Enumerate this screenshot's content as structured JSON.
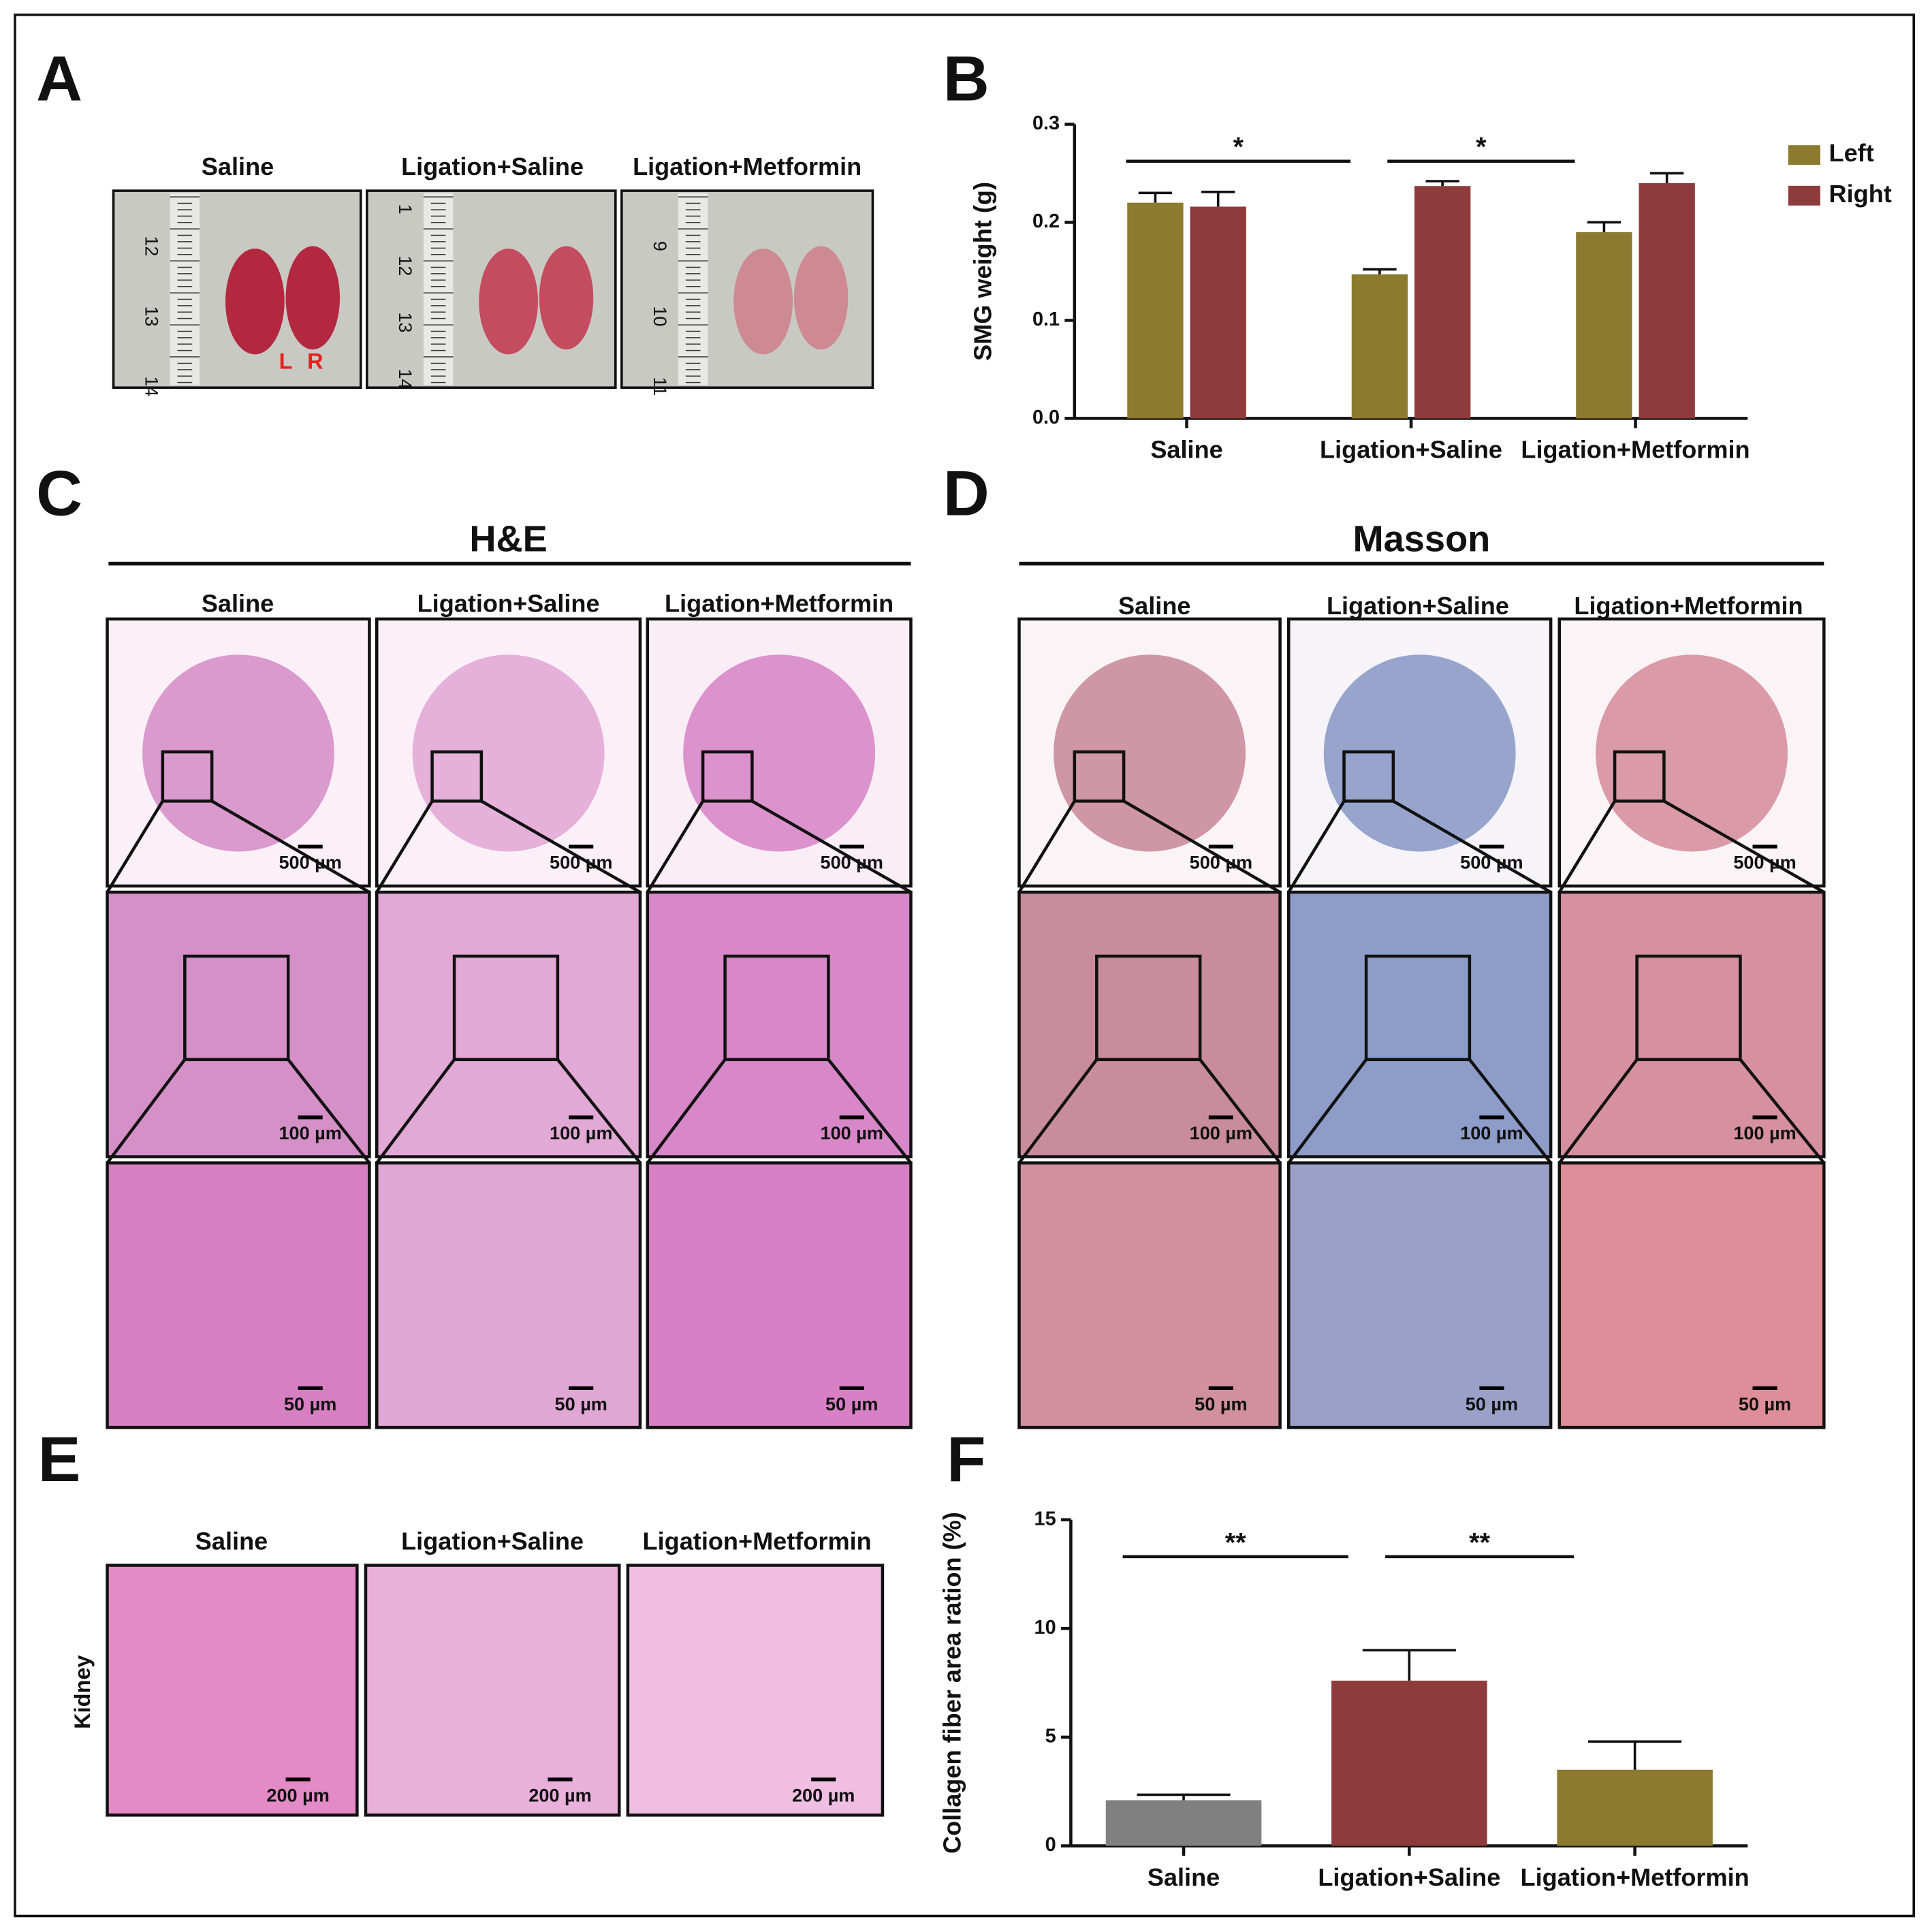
{
  "panel_labels": [
    "A",
    "B",
    "C",
    "D",
    "E",
    "F"
  ],
  "panel_a": {
    "groups": [
      "Saline",
      "Ligation+Saline",
      "Ligation+Metformin"
    ],
    "rulers": [
      [
        "12",
        "13",
        "14"
      ],
      [
        "1",
        "12",
        "13",
        "14"
      ],
      [
        "9",
        "10",
        "11"
      ]
    ],
    "side_labels": [
      "L",
      "R"
    ]
  },
  "panel_c": {
    "title": "H&E",
    "groups": [
      "Saline",
      "Ligation+Saline",
      "Ligation+Metformin"
    ],
    "scale_bars": [
      "500 µm",
      "100 µm",
      "50 µm"
    ]
  },
  "panel_d": {
    "title": "Masson",
    "groups": [
      "Saline",
      "Ligation+Saline",
      "Ligation+Metformin"
    ],
    "scale_bars": [
      "500 µm",
      "100 µm",
      "50 µm"
    ]
  },
  "panel_e": {
    "groups": [
      "Saline",
      "Ligation+Saline",
      "Ligation+Metformin"
    ],
    "row_label": "Kidney",
    "scale_bar": "200 µm"
  },
  "chart_data": [
    {
      "type": "grouped_bar",
      "y_label": "SMG weight (g)",
      "categories": [
        "Saline",
        "Ligation+Saline",
        "Ligation+Metformin"
      ],
      "series": [
        {
          "name": "Left",
          "color": "#8c7a2e",
          "values": [
            0.22,
            0.147,
            0.19
          ],
          "errors": [
            0.01,
            0.005,
            0.01
          ]
        },
        {
          "name": "Right",
          "color": "#8e3b3c",
          "values": [
            0.216,
            0.237,
            0.24
          ],
          "errors": [
            0.015,
            0.005,
            0.01
          ]
        }
      ],
      "ylim": [
        0,
        0.3
      ],
      "yticks": [
        {
          "value": 0,
          "label": "0.0"
        },
        0.1,
        0.2,
        0.3
      ],
      "legend": "right",
      "annotations": [
        {
          "text": "*",
          "between": [
            "Saline",
            "Ligation+Saline"
          ]
        },
        {
          "text": "*",
          "between": [
            "Ligation+Saline",
            "Ligation+Metformin"
          ]
        }
      ]
    },
    {
      "type": "bar",
      "y_label": "Collagen fiber area ration (%)",
      "categories": [
        "Saline",
        "Ligation+Saline",
        "Ligation+Metformin"
      ],
      "values": [
        2.1,
        7.6,
        3.5
      ],
      "errors": [
        0.25,
        1.4,
        1.3
      ],
      "colors": [
        "#808080",
        "#8e3b3c",
        "#8c7a2e"
      ],
      "ylim": [
        0,
        15
      ],
      "yticks": [
        0,
        5,
        10,
        15
      ],
      "annotations": [
        {
          "text": "**",
          "between": [
            "Saline",
            "Ligation+Saline"
          ]
        },
        {
          "text": "**",
          "between": [
            "Ligation+Saline",
            "Ligation+Metformin"
          ]
        }
      ]
    }
  ]
}
